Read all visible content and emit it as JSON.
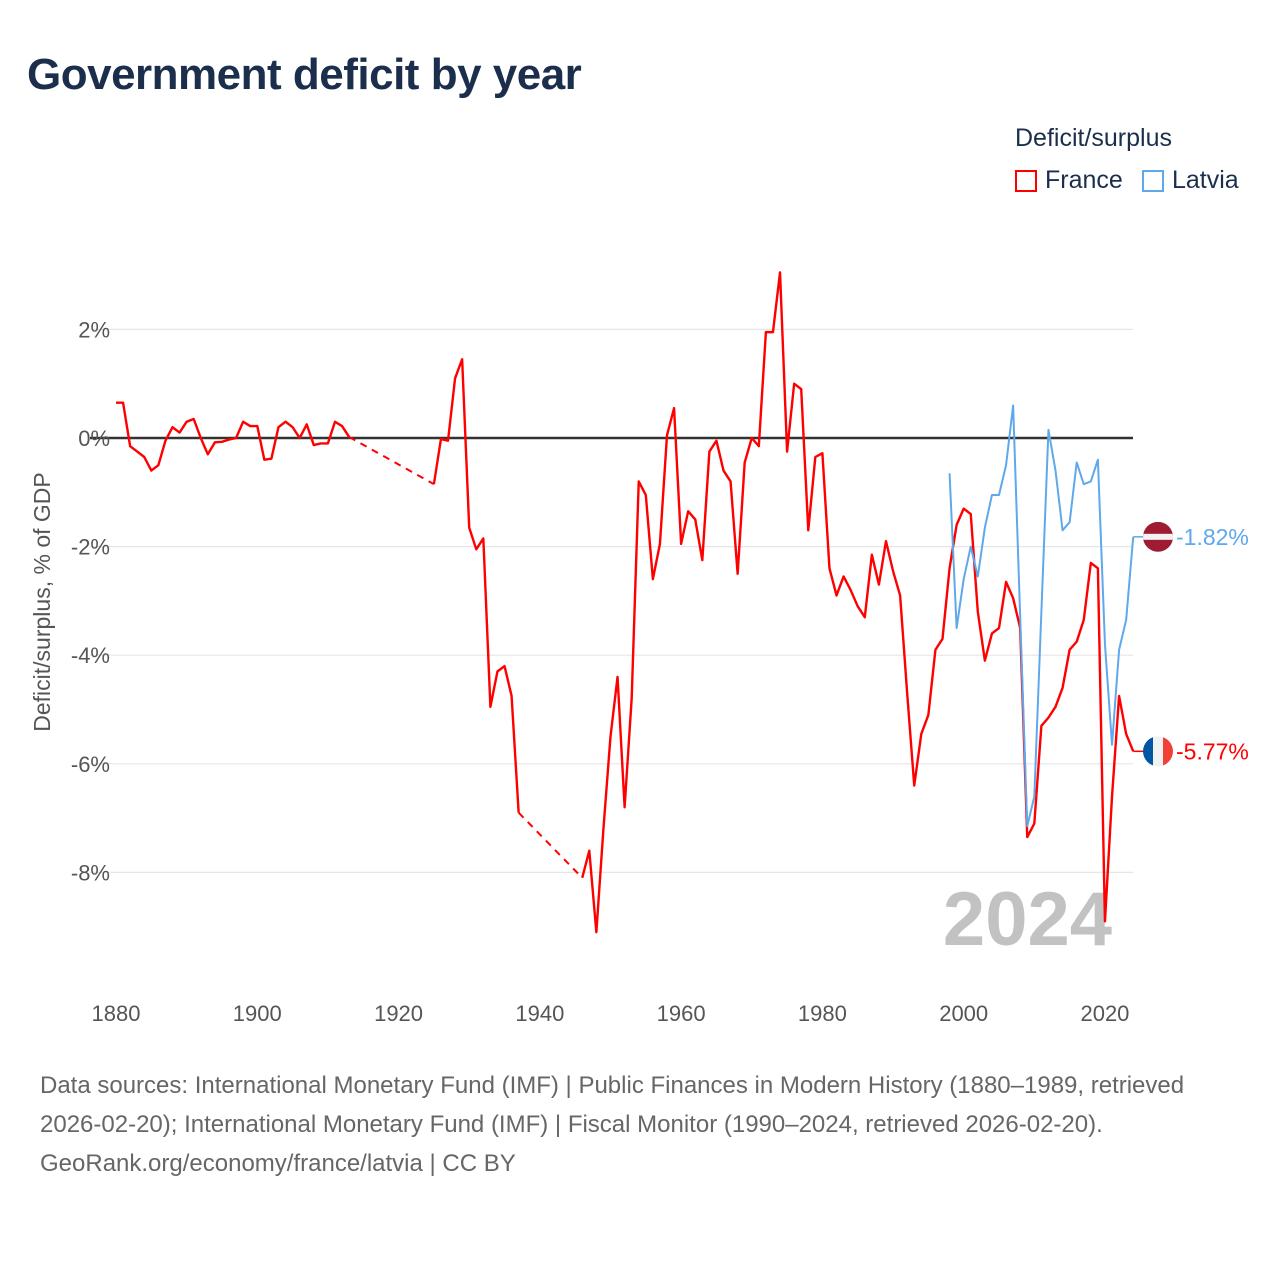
{
  "chart_data": {
    "type": "line",
    "title": "Government deficit by year",
    "ylabel": "Deficit/surplus, % of GDP",
    "xlabel": "",
    "xlim": [
      1880,
      2024
    ],
    "ylim": [
      -10,
      3.1
    ],
    "x_ticks": [
      1880,
      1900,
      1920,
      1940,
      1960,
      1980,
      2000,
      2020
    ],
    "x_tick_labels": [
      "1880",
      "1900",
      "1920",
      "1940",
      "1960",
      "1980",
      "2000",
      "2020"
    ],
    "y_ticks": [
      2,
      0,
      -2,
      -4,
      -6,
      -8
    ],
    "y_tick_labels": [
      "2%",
      "0%",
      "-2%",
      "-4%",
      "-6%",
      "-8%"
    ],
    "grid": true,
    "legend_title": "Deficit/surplus",
    "legend_placement": "top-right",
    "year_watermark": "2024",
    "series": [
      {
        "name": "France",
        "color": "#ff0000",
        "end_label": "-5.77%",
        "points": [
          [
            1880,
            0.65
          ],
          [
            1881,
            0.65
          ],
          [
            1882,
            -0.15
          ],
          [
            1883,
            -0.25
          ],
          [
            1884,
            -0.35
          ],
          [
            1885,
            -0.6
          ],
          [
            1886,
            -0.5
          ],
          [
            1887,
            -0.05
          ],
          [
            1888,
            0.2
          ],
          [
            1889,
            0.1
          ],
          [
            1890,
            0.3
          ],
          [
            1891,
            0.35
          ],
          [
            1892,
            0
          ],
          [
            1893,
            -0.3
          ],
          [
            1894,
            -0.08
          ],
          [
            1895,
            -0.07
          ],
          [
            1896,
            -0.03
          ],
          [
            1897,
            0
          ],
          [
            1898,
            0.3
          ],
          [
            1899,
            0.22
          ],
          [
            1900,
            0.22
          ],
          [
            1901,
            -0.4
          ],
          [
            1902,
            -0.38
          ],
          [
            1903,
            0.2
          ],
          [
            1904,
            0.3
          ],
          [
            1905,
            0.2
          ],
          [
            1906,
            0
          ],
          [
            1907,
            0.25
          ],
          [
            1908,
            -0.13
          ],
          [
            1909,
            -0.1
          ],
          [
            1910,
            -0.1
          ],
          [
            1911,
            0.3
          ],
          [
            1912,
            0.22
          ],
          [
            1913,
            0.02
          ],
          [
            1925,
            -0.85
          ],
          [
            1926,
            -0.02
          ],
          [
            1927,
            -0.05
          ],
          [
            1928,
            1.1
          ],
          [
            1929,
            1.45
          ],
          [
            1930,
            -1.65
          ],
          [
            1931,
            -2.05
          ],
          [
            1932,
            -1.85
          ],
          [
            1933,
            -4.95
          ],
          [
            1934,
            -4.3
          ],
          [
            1935,
            -4.2
          ],
          [
            1936,
            -4.75
          ],
          [
            1937,
            -6.9
          ],
          [
            1946,
            -8.1
          ],
          [
            1947,
            -7.6
          ],
          [
            1948,
            -9.1
          ],
          [
            1949,
            -7.2
          ],
          [
            1950,
            -5.5
          ],
          [
            1951,
            -4.4
          ],
          [
            1952,
            -6.8
          ],
          [
            1953,
            -4.8
          ],
          [
            1954,
            -0.8
          ],
          [
            1955,
            -1.05
          ],
          [
            1956,
            -2.6
          ],
          [
            1957,
            -1.95
          ],
          [
            1958,
            0.05
          ],
          [
            1959,
            0.55
          ],
          [
            1960,
            -1.95
          ],
          [
            1961,
            -1.35
          ],
          [
            1962,
            -1.5
          ],
          [
            1963,
            -2.25
          ],
          [
            1964,
            -0.25
          ],
          [
            1965,
            -0.05
          ],
          [
            1966,
            -0.6
          ],
          [
            1967,
            -0.8
          ],
          [
            1968,
            -2.5
          ],
          [
            1969,
            -0.45
          ],
          [
            1970,
            0
          ],
          [
            1971,
            -0.15
          ],
          [
            1972,
            1.95
          ],
          [
            1973,
            1.95
          ],
          [
            1974,
            3.05
          ],
          [
            1975,
            -0.25
          ],
          [
            1976,
            1.0
          ],
          [
            1977,
            0.9
          ],
          [
            1978,
            -1.7
          ],
          [
            1979,
            -0.35
          ],
          [
            1980,
            -0.28
          ],
          [
            1981,
            -2.4
          ],
          [
            1982,
            -2.9
          ],
          [
            1983,
            -2.55
          ],
          [
            1984,
            -2.8
          ],
          [
            1985,
            -3.1
          ],
          [
            1986,
            -3.3
          ],
          [
            1987,
            -2.15
          ],
          [
            1988,
            -2.7
          ],
          [
            1989,
            -1.9
          ],
          [
            1990,
            -2.45
          ],
          [
            1991,
            -2.9
          ],
          [
            1992,
            -4.7
          ],
          [
            1993,
            -6.4
          ],
          [
            1994,
            -5.45
          ],
          [
            1995,
            -5.1
          ],
          [
            1996,
            -3.9
          ],
          [
            1997,
            -3.7
          ],
          [
            1998,
            -2.4
          ],
          [
            1999,
            -1.6
          ],
          [
            2000,
            -1.3
          ],
          [
            2001,
            -1.4
          ],
          [
            2002,
            -3.2
          ],
          [
            2003,
            -4.1
          ],
          [
            2004,
            -3.6
          ],
          [
            2005,
            -3.5
          ],
          [
            2006,
            -2.65
          ],
          [
            2007,
            -2.95
          ],
          [
            2008,
            -3.5
          ],
          [
            2009,
            -7.35
          ],
          [
            2010,
            -7.1
          ],
          [
            2011,
            -5.3
          ],
          [
            2012,
            -5.15
          ],
          [
            2013,
            -4.95
          ],
          [
            2014,
            -4.6
          ],
          [
            2015,
            -3.9
          ],
          [
            2016,
            -3.75
          ],
          [
            2017,
            -3.35
          ],
          [
            2018,
            -2.3
          ],
          [
            2019,
            -2.4
          ],
          [
            2020,
            -8.9
          ],
          [
            2021,
            -6.6
          ],
          [
            2022,
            -4.75
          ],
          [
            2023,
            -5.45
          ],
          [
            2024,
            -5.77
          ]
        ]
      },
      {
        "name": "Latvia",
        "color": "#5fa8ec",
        "end_label": "-1.82%",
        "points": [
          [
            1998,
            -0.65
          ],
          [
            1999,
            -3.5
          ],
          [
            2000,
            -2.6
          ],
          [
            2001,
            -2.0
          ],
          [
            2002,
            -2.55
          ],
          [
            2003,
            -1.65
          ],
          [
            2004,
            -1.05
          ],
          [
            2005,
            -1.05
          ],
          [
            2006,
            -0.5
          ],
          [
            2007,
            0.6
          ],
          [
            2008,
            -3.3
          ],
          [
            2009,
            -7.15
          ],
          [
            2010,
            -6.6
          ],
          [
            2011,
            -3.2
          ],
          [
            2012,
            0.15
          ],
          [
            2013,
            -0.6
          ],
          [
            2014,
            -1.7
          ],
          [
            2015,
            -1.55
          ],
          [
            2016,
            -0.45
          ],
          [
            2017,
            -0.85
          ],
          [
            2018,
            -0.8
          ],
          [
            2019,
            -0.4
          ],
          [
            2020,
            -3.8
          ],
          [
            2021,
            -5.65
          ],
          [
            2022,
            -3.9
          ],
          [
            2023,
            -3.35
          ],
          [
            2024,
            -1.82
          ]
        ]
      }
    ]
  },
  "footer": {
    "sources": "Data sources: International Monetary Fund (IMF) | Public Finances in Modern History (1880–1989, retrieved 2026-02-20); International Monetary Fund (IMF) | Fiscal Monitor (1990–2024, retrieved 2026-02-20).",
    "credit": "GeoRank.org/economy/france/latvia | CC BY"
  }
}
